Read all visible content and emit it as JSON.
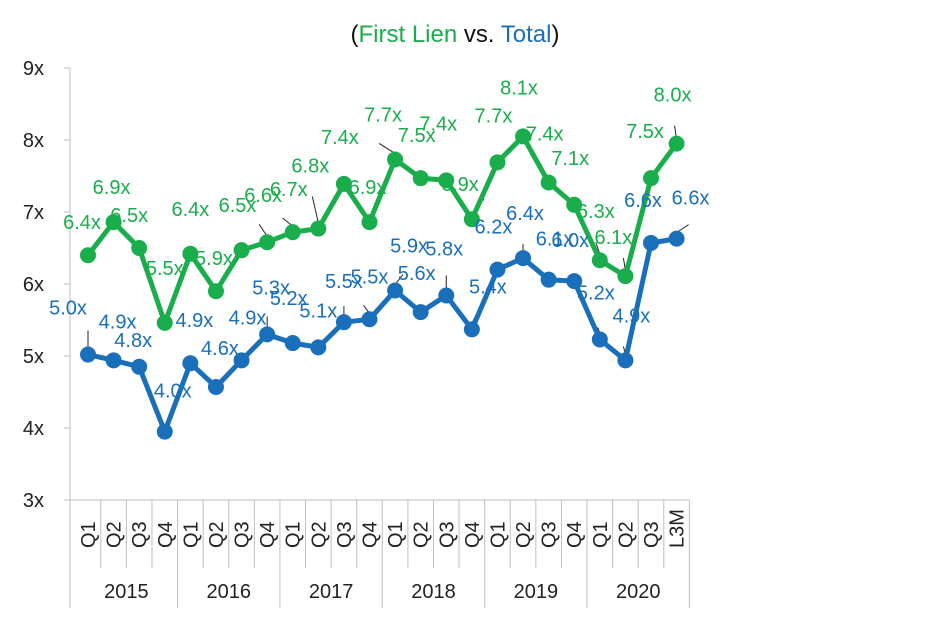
{
  "chart_data": {
    "type": "line",
    "title": {
      "open": "(",
      "part1": "First Lien",
      "sep": " vs. ",
      "part2": "Total",
      "close": ")"
    },
    "xlabel": "",
    "ylabel": "",
    "ylim": [
      3,
      9
    ],
    "ytick_labels": [
      "3x",
      "4x",
      "5x",
      "6x",
      "7x",
      "8x",
      "9x"
    ],
    "grid": false,
    "categories": [
      "Q1",
      "Q2",
      "Q3",
      "Q4",
      "Q1",
      "Q2",
      "Q3",
      "Q4",
      "Q1",
      "Q2",
      "Q3",
      "Q4",
      "Q1",
      "Q2",
      "Q3",
      "Q4",
      "Q1",
      "Q2",
      "Q3",
      "Q4",
      "Q1",
      "Q2",
      "Q3",
      "L3M"
    ],
    "groups": [
      {
        "label": "2015",
        "count": 4
      },
      {
        "label": "2016",
        "count": 4
      },
      {
        "label": "2017",
        "count": 4
      },
      {
        "label": "2018",
        "count": 4
      },
      {
        "label": "2019",
        "count": 4
      },
      {
        "label": "2020",
        "count": 4
      }
    ],
    "series": [
      {
        "name": "First Lien",
        "color": "#1aad4b",
        "values": [
          6.4,
          6.86,
          6.5,
          5.46,
          6.42,
          5.9,
          6.47,
          6.58,
          6.72,
          6.77,
          7.39,
          6.86,
          7.73,
          7.47,
          7.44,
          6.9,
          7.69,
          8.05,
          7.41,
          7.1,
          6.33,
          6.11,
          7.47,
          7.95
        ],
        "labels": [
          "6.4x",
          "6.9x",
          "6.5x",
          "5.5x",
          "6.4x",
          "5.9x",
          "6.5x",
          "6.6x",
          "6.7x",
          "6.8x",
          "7.4x",
          "6.9x",
          "7.7x",
          "7.5x",
          "7.4x",
          "6.9x",
          "7.7x",
          "8.1x",
          "7.4x",
          "7.1x",
          "6.3x",
          "6.1x",
          "7.5x",
          "8.0x"
        ]
      },
      {
        "name": "Total",
        "color": "#1a6fba",
        "values": [
          5.02,
          4.94,
          4.85,
          3.95,
          4.9,
          4.57,
          4.94,
          5.3,
          5.18,
          5.12,
          5.47,
          5.51,
          5.91,
          5.61,
          5.84,
          5.37,
          6.2,
          6.36,
          6.06,
          6.04,
          5.23,
          4.94,
          6.57,
          6.63
        ],
        "labels": [
          "5.0x",
          "4.9x",
          "4.8x",
          "4.0x",
          "4.9x",
          "4.6x",
          "4.9x",
          "5.3x",
          "5.2x",
          "5.1x",
          "5.5x",
          "5.5x",
          "5.9x",
          "5.6x",
          "5.8x",
          "5.4x",
          "6.2x",
          "6.4x",
          "6.1x",
          "6.0x",
          "5.2x",
          "4.9x",
          "6.6x",
          "6.6x"
        ]
      }
    ]
  }
}
